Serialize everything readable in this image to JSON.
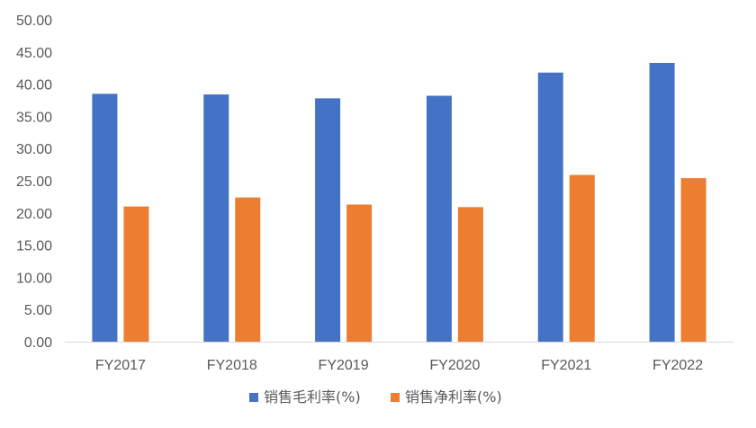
{
  "chart_data": {
    "type": "bar",
    "title": "",
    "xlabel": "",
    "ylabel": "",
    "categories": [
      "FY2017",
      "FY2018",
      "FY2019",
      "FY2020",
      "FY2021",
      "FY2022"
    ],
    "series": [
      {
        "name": "销售毛利率(%)",
        "color": "#4472C4",
        "values": [
          38.5,
          38.4,
          37.8,
          38.2,
          41.8,
          43.3
        ]
      },
      {
        "name": "销售净利率(%)",
        "color": "#ED7D31",
        "values": [
          21.0,
          22.4,
          21.3,
          20.9,
          25.9,
          25.4
        ]
      }
    ],
    "ylim": [
      0,
      50
    ],
    "yticks": [
      "0.00",
      "5.00",
      "10.00",
      "15.00",
      "20.00",
      "25.00",
      "30.00",
      "35.00",
      "40.00",
      "45.00",
      "50.00"
    ],
    "grid": false,
    "legend": "bottom-center",
    "axis_color": "#D9D9D9",
    "text_color": "#595959"
  }
}
